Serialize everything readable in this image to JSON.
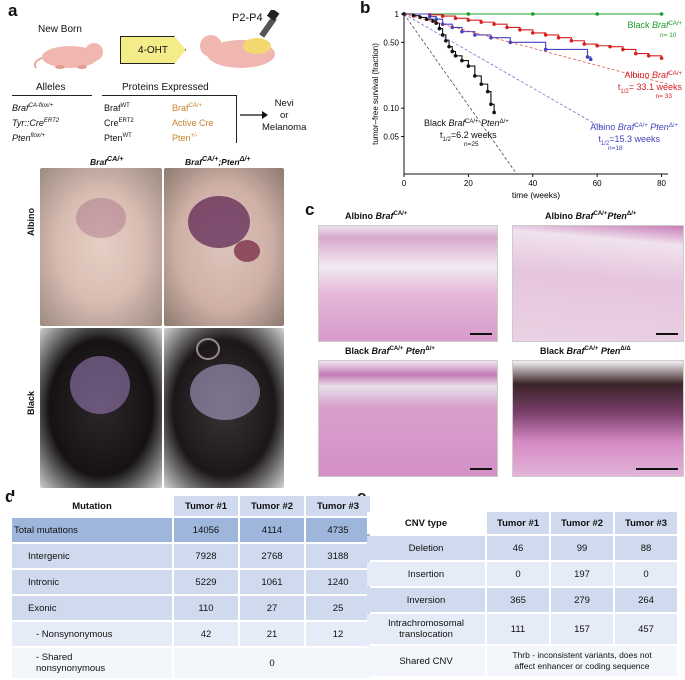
{
  "panels": {
    "a": "a",
    "b": "b",
    "c": "c",
    "d": "d",
    "e": "e"
  },
  "panel_a": {
    "newborn": "New Born",
    "drug": "4-OHT",
    "age": "P2-P4",
    "alleles_header": "Alleles",
    "proteins_header": "Proteins Expressed",
    "alleles": [
      {
        "base": "Braf",
        "sup": "CA-flox/+"
      },
      {
        "base": "Tyr::Cre",
        "sup": "ERT2"
      },
      {
        "base": "Pten",
        "sup": "flox/+"
      }
    ],
    "proteins_black": [
      {
        "base": "Braf",
        "sup": "WT"
      },
      {
        "base": "Cre",
        "sup": "ERT2"
      },
      {
        "base": "Pten",
        "sup": "WT"
      }
    ],
    "proteins_orange": [
      {
        "base": "Braf",
        "sup": "CA/+"
      },
      {
        "base": "Active Cre",
        "sup": ""
      },
      {
        "base": "Pten",
        "sup": "+/-"
      }
    ],
    "outcome": [
      "Nevi",
      "or",
      "Melanoma"
    ],
    "col1": {
      "base": "Braf",
      "sup": "CA/+"
    },
    "col2": {
      "base": "Braf",
      "sup": "CA/+",
      "mid": ";Pten",
      "sup2": "Δ/+"
    },
    "row1": "Albino",
    "row2": "Black"
  },
  "colors": {
    "green": "#1a9e2a",
    "red": "#d62020",
    "blue": "#4444c0",
    "black": "#111111",
    "orange": "#c8842a"
  },
  "chart_data": {
    "type": "line",
    "xlabel": "time (weeks)",
    "ylabel": "tumor–free survival (fraction)",
    "xlim": [
      0,
      82
    ],
    "ylim": [
      0.02,
      1
    ],
    "yscale": "log",
    "xticks": [
      0,
      20,
      40,
      60,
      80
    ],
    "yticks": [
      {
        "v": 1,
        "l": "1"
      },
      {
        "v": 0.5,
        "l": "0.50"
      },
      {
        "v": 0.1,
        "l": "0.10"
      },
      {
        "v": 0.05,
        "l": "0.05"
      }
    ],
    "series": [
      {
        "name": "Black Braf CA/+",
        "color": "#1a9e2a",
        "n": "n= 10",
        "half_life": "",
        "x": [
          0,
          20,
          40,
          60,
          80
        ],
        "y": [
          1,
          1,
          1,
          1,
          1
        ]
      },
      {
        "name": "Albino Braf CA/+",
        "color": "#d62020",
        "n": "n= 33",
        "half_life": "t1/2= 33.1 weeks",
        "x": [
          0,
          8,
          12,
          16,
          20,
          24,
          28,
          32,
          36,
          40,
          44,
          48,
          52,
          56,
          60,
          64,
          68,
          72,
          76,
          80
        ],
        "y": [
          1,
          0.98,
          0.95,
          0.9,
          0.86,
          0.82,
          0.78,
          0.72,
          0.68,
          0.63,
          0.6,
          0.56,
          0.52,
          0.48,
          0.46,
          0.45,
          0.42,
          0.38,
          0.36,
          0.34
        ]
      },
      {
        "name": "Albino Braf CA/+ Pten Δ/+",
        "color": "#4444c0",
        "n": "n=18",
        "half_life": "t1/2=15.3 weeks",
        "x": [
          0,
          8,
          10,
          12,
          15,
          18,
          22,
          27,
          33,
          44,
          57,
          58
        ],
        "y": [
          1,
          0.94,
          0.88,
          0.78,
          0.72,
          0.65,
          0.6,
          0.56,
          0.5,
          0.42,
          0.35,
          0.33
        ]
      },
      {
        "name": "Black Braf CA/+ Pten Δ/+",
        "color": "#111111",
        "n": "n=25",
        "half_life": "t1/2=6.2 weeks",
        "x": [
          0,
          3,
          5,
          7,
          9,
          10,
          11,
          12,
          13,
          14,
          15,
          16,
          18,
          20,
          22,
          24,
          26,
          27,
          28
        ],
        "y": [
          1,
          0.96,
          0.92,
          0.88,
          0.84,
          0.8,
          0.7,
          0.6,
          0.52,
          0.45,
          0.4,
          0.36,
          0.32,
          0.28,
          0.22,
          0.18,
          0.15,
          0.11,
          0.09
        ]
      }
    ],
    "labels": {
      "green": {
        "t1": "Black ",
        "t2": "Braf",
        "sup": "CA/+"
      },
      "red": {
        "t1": "Albino ",
        "t2": "Braf",
        "sup": "CA/+",
        "hl": "t",
        "hls": "1/2",
        "hlv": "= 33.1 weeks"
      },
      "blue": {
        "t1": "Albino ",
        "t2": "Braf",
        "sup": "CA/+",
        "t3": " Pten",
        "sup2": "Δ/+",
        "hl": "t",
        "hls": "1/2",
        "hlv": "=15.3 weeks"
      },
      "black": {
        "t1": "Black ",
        "t2": "Braf",
        "sup": "CA/+",
        "t3": " Pten",
        "sup2": "Δ/+",
        "hl": "t",
        "hls": "1/2",
        "hlv": "=6.2 weeks"
      }
    }
  },
  "panel_c": {
    "titles": [
      {
        "t1": "Albino ",
        "t2": "Braf",
        "sup": "CA/+",
        "t3": "",
        "sup2": ""
      },
      {
        "t1": "Albino ",
        "t2": "Braf",
        "sup": "CA/+",
        "t3": "Pten",
        "sup2": "Δ/+"
      },
      {
        "t1": "Black ",
        "t2": "Braf",
        "sup": "CA/+",
        "t3": " Pten",
        "sup2": "Δ/+"
      },
      {
        "t1": "Black ",
        "t2": "Braf",
        "sup": "CA/+",
        "t3": " Pten",
        "sup2": "Δ/Δ"
      }
    ]
  },
  "table_d": {
    "headers": [
      "Mutation",
      "Tumor #1",
      "Tumor #2",
      "Tumor #3"
    ],
    "rows": [
      {
        "label": "Total mutations",
        "v": [
          "14056",
          "4114",
          "4735"
        ]
      },
      {
        "label": "Intergenic",
        "v": [
          "7928",
          "2768",
          "3188"
        ]
      },
      {
        "label": "Intronic",
        "v": [
          "5229",
          "1061",
          "1240"
        ]
      },
      {
        "label": "Exonic",
        "v": [
          "110",
          "27",
          "25"
        ]
      },
      {
        "label": "- Nonsynonymous",
        "v": [
          "42",
          "21",
          "12"
        ]
      }
    ],
    "shared_label": [
      "- Shared",
      "nonsynonymous"
    ],
    "shared_value": "0"
  },
  "table_e": {
    "headers": [
      "CNV type",
      "Tumor #1",
      "Tumor #2",
      "Tumor #3"
    ],
    "rows": [
      {
        "label": "Deletion",
        "v": [
          "46",
          "99",
          "88"
        ]
      },
      {
        "label": "Insertion",
        "v": [
          "0",
          "197",
          "0"
        ]
      },
      {
        "label": "Inversion",
        "v": [
          "365",
          "279",
          "264"
        ]
      }
    ],
    "intra_label": [
      "Intrachromosomal",
      "translocation"
    ],
    "intra_v": [
      "111",
      "157",
      "457"
    ],
    "shared_label": "Shared CNV",
    "shared_value": [
      "Thrb - inconsistent variants, does not",
      "affect enhancer or coding sequence"
    ]
  }
}
